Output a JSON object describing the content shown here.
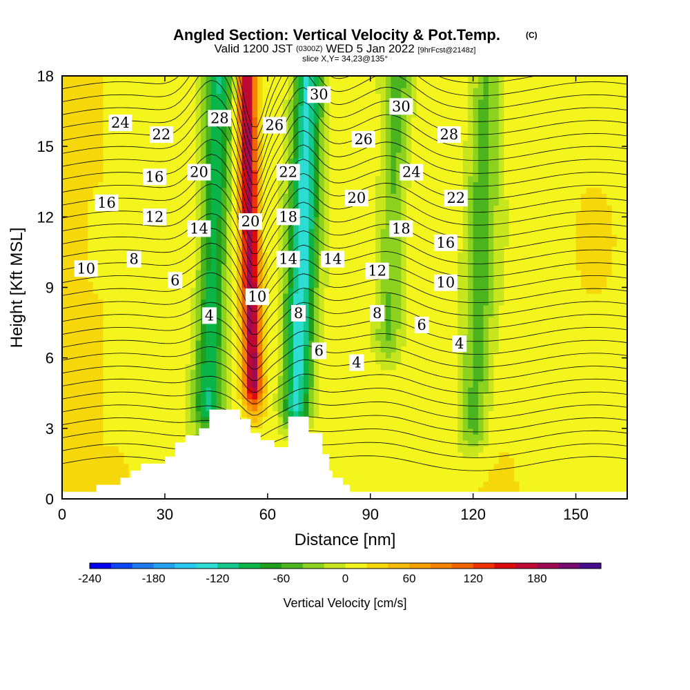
{
  "header": {
    "title": "Angled Section: Vertical Velocity & Pot.Temp.",
    "title_mark": "(C)",
    "valid_prefix": "Valid 1200 JST",
    "valid_utc": "(0300Z)",
    "valid_date": "WED 5 Jan 2022",
    "forecast_tag": "[9hrFcst@2148z]",
    "slice": "slice X,Y= 34,23@135°"
  },
  "chart_data": {
    "type": "heatmap",
    "title": "Angled Section: Vertical Velocity & Pot.Temp.",
    "xlabel": "Distance [nm]",
    "ylabel": "Height [Kft MSL]",
    "xlim": [
      0,
      165
    ],
    "ylim": [
      0,
      18
    ],
    "x_ticks": [
      0,
      30,
      60,
      90,
      120,
      150
    ],
    "y_ticks": [
      0,
      3,
      6,
      9,
      12,
      15,
      18
    ],
    "x_tick_labels": [
      "0",
      "30",
      "60",
      "90",
      "120",
      "150"
    ],
    "y_tick_labels": [
      "0",
      "3",
      "6",
      "9",
      "12",
      "15",
      "18"
    ],
    "grid": false,
    "colorbar": {
      "title": "Vertical Velocity [cm/s]",
      "min": -240,
      "max": 210,
      "step": 20,
      "tick_values": [
        -240,
        -180,
        -120,
        -60,
        0,
        60,
        120,
        180
      ],
      "tick_labels": [
        "-240",
        "-180",
        "-120",
        "-60",
        "0",
        "60",
        "120",
        "180"
      ],
      "colors": [
        "#0000f0",
        "#0a46f5",
        "#1e78f0",
        "#23a0f0",
        "#28c8f0",
        "#2ddcd2",
        "#14c88c",
        "#0ab446",
        "#1ea01e",
        "#4bb41e",
        "#8cd21e",
        "#c8e61e",
        "#f5f51e",
        "#f5d70a",
        "#f5bc0a",
        "#f5a000",
        "#f58200",
        "#f06400",
        "#f03200",
        "#dc0a0a",
        "#be0a32",
        "#a00a50",
        "#780a6e",
        "#460a8c"
      ]
    },
    "vertical_velocity_features": [
      {
        "type": "updraft",
        "center_x": 55,
        "z_range": [
          5,
          18
        ],
        "peak": 180
      },
      {
        "type": "downdraft",
        "center_x": 44,
        "z_range": [
          4,
          18
        ],
        "peak": -110
      },
      {
        "type": "downdraft",
        "center_x": 70,
        "z_range": [
          4,
          18
        ],
        "peak": -140
      },
      {
        "type": "downdraft",
        "center_x": 96,
        "z_range": [
          7,
          18
        ],
        "peak": -60
      },
      {
        "type": "downdraft",
        "center_x": 122,
        "z_range": [
          3,
          18
        ],
        "peak": -60
      }
    ],
    "terrain_profile": {
      "x": [
        0,
        10,
        17,
        20,
        23,
        30,
        33,
        36,
        40,
        43,
        49,
        52,
        55,
        58,
        62,
        66,
        72,
        76,
        78,
        79,
        82,
        84,
        165
      ],
      "height": [
        0.3,
        0.6,
        0.9,
        1.2,
        1.5,
        1.8,
        2.4,
        2.7,
        3.0,
        3.8,
        3.8,
        3.4,
        2.8,
        2.5,
        2.2,
        3.5,
        2.8,
        1.9,
        1.2,
        0.9,
        0.6,
        0.3,
        0.3
      ]
    },
    "potential_temperature_contours": {
      "units": "C",
      "interval": 1,
      "range": [
        2,
        32
      ],
      "labels": [
        {
          "text": "24",
          "x": 17,
          "z": 16.0
        },
        {
          "text": "22",
          "x": 29,
          "z": 15.5
        },
        {
          "text": "28",
          "x": 46,
          "z": 16.2
        },
        {
          "text": "26",
          "x": 62,
          "z": 15.9
        },
        {
          "text": "30",
          "x": 75,
          "z": 17.2
        },
        {
          "text": "30",
          "x": 99,
          "z": 16.7
        },
        {
          "text": "26",
          "x": 88,
          "z": 15.3
        },
        {
          "text": "28",
          "x": 113,
          "z": 15.5
        },
        {
          "text": "16",
          "x": 27,
          "z": 13.7
        },
        {
          "text": "20",
          "x": 40,
          "z": 13.9
        },
        {
          "text": "22",
          "x": 66,
          "z": 13.9
        },
        {
          "text": "24",
          "x": 102,
          "z": 13.9
        },
        {
          "text": "16",
          "x": 13,
          "z": 12.6
        },
        {
          "text": "12",
          "x": 27,
          "z": 12.0
        },
        {
          "text": "14",
          "x": 40,
          "z": 11.5
        },
        {
          "text": "20",
          "x": 55,
          "z": 11.8
        },
        {
          "text": "18",
          "x": 66,
          "z": 12.0
        },
        {
          "text": "20",
          "x": 86,
          "z": 12.8
        },
        {
          "text": "22",
          "x": 115,
          "z": 12.8
        },
        {
          "text": "18",
          "x": 99,
          "z": 11.5
        },
        {
          "text": "16",
          "x": 112,
          "z": 10.9
        },
        {
          "text": "10",
          "x": 7,
          "z": 9.8
        },
        {
          "text": "8",
          "x": 21,
          "z": 10.2
        },
        {
          "text": "6",
          "x": 33,
          "z": 9.3
        },
        {
          "text": "14",
          "x": 66,
          "z": 10.2
        },
        {
          "text": "14",
          "x": 79,
          "z": 10.2
        },
        {
          "text": "12",
          "x": 92,
          "z": 9.7
        },
        {
          "text": "10",
          "x": 112,
          "z": 9.2
        },
        {
          "text": "10",
          "x": 57,
          "z": 8.6
        },
        {
          "text": "4",
          "x": 43,
          "z": 7.8
        },
        {
          "text": "8",
          "x": 69,
          "z": 7.9
        },
        {
          "text": "8",
          "x": 92,
          "z": 7.9
        },
        {
          "text": "6",
          "x": 105,
          "z": 7.4
        },
        {
          "text": "4",
          "x": 116,
          "z": 6.6
        },
        {
          "text": "6",
          "x": 75,
          "z": 6.3
        },
        {
          "text": "4",
          "x": 86,
          "z": 5.8
        }
      ]
    }
  }
}
